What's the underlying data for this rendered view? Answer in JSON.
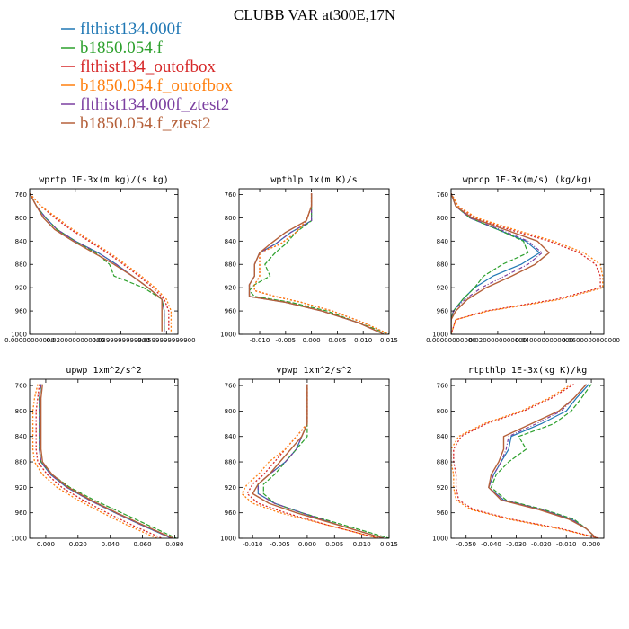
{
  "title": "CLUBB VAR at300E,17N",
  "legend": [
    {
      "name": "flthist134.000f",
      "color": "#1f77b4"
    },
    {
      "name": "b1850.054.f",
      "color": "#2ca02c"
    },
    {
      "name": "flthist134_outofbox",
      "color": "#d62728"
    },
    {
      "name": "b1850.054.f_outofbox",
      "color": "#ff7f0e"
    },
    {
      "name": "flthist134.000f_ztest2",
      "color": "#7b3fa0"
    },
    {
      "name": "b1850.054.f_ztest2",
      "color": "#b5603a"
    }
  ],
  "chart_data": [
    {
      "type": "line",
      "title": "wprtp  1E-3x(m kg)/(s kg)",
      "xlim": [
        0.0,
        0.065
      ],
      "ylim": [
        1000,
        750
      ],
      "x_ticks": [
        0.0,
        0.02,
        0.04,
        0.06
      ],
      "x_tick_labels": [
        "0.00000000000",
        "0.0200000000000",
        "0.0399999999900",
        "0.0599999999900"
      ],
      "y_ticks": [
        760,
        800,
        840,
        880,
        920,
        960,
        1000
      ],
      "y": [
        758,
        780,
        800,
        820,
        840,
        860,
        880,
        900,
        920,
        940,
        960,
        980,
        995
      ],
      "series": [
        {
          "name": "flthist134.000f",
          "values": [
            0.0,
            0.003,
            0.007,
            0.012,
            0.02,
            0.03,
            0.038,
            0.045,
            0.052,
            0.058,
            0.059,
            0.059,
            0.059
          ]
        },
        {
          "name": "b1850.054.f",
          "values": [
            0.0,
            0.003,
            0.007,
            0.012,
            0.02,
            0.029,
            0.035,
            0.037,
            0.05,
            0.058,
            0.059,
            0.059,
            0.059
          ]
        },
        {
          "name": "flthist134_outofbox",
          "values": [
            0.0,
            0.005,
            0.011,
            0.018,
            0.026,
            0.034,
            0.041,
            0.048,
            0.054,
            0.059,
            0.061,
            0.061,
            0.061
          ]
        },
        {
          "name": "b1850.054.f_outofbox",
          "values": [
            0.0,
            0.005,
            0.012,
            0.019,
            0.027,
            0.035,
            0.042,
            0.049,
            0.055,
            0.06,
            0.062,
            0.062,
            0.062
          ]
        },
        {
          "name": "flthist134.000f_ztest2",
          "values": [
            0.0,
            0.003,
            0.007,
            0.012,
            0.02,
            0.03,
            0.038,
            0.045,
            0.052,
            0.058,
            0.059,
            0.059,
            0.059
          ]
        },
        {
          "name": "b1850.054.f_ztest2",
          "values": [
            0.0,
            0.003,
            0.006,
            0.011,
            0.019,
            0.028,
            0.037,
            0.045,
            0.052,
            0.058,
            0.058,
            0.058,
            0.058
          ]
        }
      ]
    },
    {
      "type": "line",
      "title": "wpthlp  1x(m K)/s",
      "xlim": [
        -0.014,
        0.015
      ],
      "ylim": [
        1000,
        750
      ],
      "x_ticks": [
        -0.01,
        -0.005,
        0.0,
        0.005,
        0.01,
        0.015
      ],
      "x_tick_labels": [
        "-0.010",
        "-0.005",
        "0.000",
        "0.005",
        "0.010",
        "0.015"
      ],
      "y_ticks": [
        760,
        800,
        840,
        880,
        920,
        960,
        1000
      ],
      "y": [
        758,
        780,
        805,
        825,
        845,
        860,
        880,
        900,
        915,
        925,
        935,
        945,
        960,
        980,
        1000
      ],
      "series": [
        {
          "name": "flthist134.000f",
          "values": [
            0.0,
            0.0,
            0.0,
            -0.004,
            -0.007,
            -0.01,
            -0.011,
            -0.011,
            -0.012,
            -0.012,
            -0.012,
            -0.005,
            0.002,
            0.009,
            0.014
          ]
        },
        {
          "name": "b1850.054.f",
          "values": [
            0.0,
            0.0,
            0.0,
            -0.003,
            -0.005,
            -0.007,
            -0.009,
            -0.008,
            -0.011,
            -0.012,
            -0.011,
            -0.004,
            0.003,
            0.009,
            0.015
          ]
        },
        {
          "name": "flthist134_outofbox",
          "values": [
            0.0,
            0.0,
            -0.001,
            -0.003,
            -0.006,
            -0.01,
            -0.01,
            -0.01,
            -0.011,
            -0.011,
            -0.007,
            -0.002,
            0.004,
            0.01,
            0.015
          ]
        },
        {
          "name": "b1850.054.f_outofbox",
          "values": [
            0.0,
            0.0,
            -0.001,
            -0.003,
            -0.006,
            -0.01,
            -0.01,
            -0.01,
            -0.011,
            -0.011,
            -0.007,
            -0.002,
            0.004,
            0.01,
            0.015
          ]
        },
        {
          "name": "flthist134.000f_ztest2",
          "values": [
            0.0,
            0.0,
            0.0,
            -0.004,
            -0.007,
            -0.01,
            -0.011,
            -0.011,
            -0.012,
            -0.012,
            -0.012,
            -0.005,
            0.002,
            0.009,
            0.014
          ]
        },
        {
          "name": "b1850.054.f_ztest2",
          "values": [
            0.0,
            0.0,
            -0.001,
            -0.005,
            -0.008,
            -0.01,
            -0.011,
            -0.011,
            -0.012,
            -0.012,
            -0.012,
            -0.005,
            0.002,
            0.009,
            0.014
          ]
        }
      ]
    },
    {
      "type": "line",
      "title": "wprcp  1E-3x(m/s) (kg/kg)",
      "xlim": [
        0.0,
        0.0655
      ],
      "ylim": [
        1000,
        750
      ],
      "x_ticks": [
        0.0,
        0.02,
        0.04,
        0.06
      ],
      "x_tick_labels": [
        "0.00000000000",
        "0.0200000000000",
        "0.0400000000000",
        "0.0600000000000"
      ],
      "y_ticks": [
        760,
        800,
        840,
        880,
        920,
        960,
        1000
      ],
      "y": [
        758,
        780,
        800,
        820,
        840,
        860,
        880,
        900,
        920,
        940,
        960,
        975,
        1000
      ],
      "series": [
        {
          "name": "flthist134.000f",
          "values": [
            0.0,
            0.002,
            0.008,
            0.02,
            0.032,
            0.038,
            0.03,
            0.018,
            0.01,
            0.005,
            0.001,
            0.0,
            0.0
          ]
        },
        {
          "name": "b1850.054.f",
          "values": [
            0.0,
            0.002,
            0.008,
            0.02,
            0.031,
            0.033,
            0.022,
            0.014,
            0.01,
            0.005,
            0.001,
            0.0,
            0.0
          ]
        },
        {
          "name": "flthist134_outofbox",
          "values": [
            0.0,
            0.003,
            0.01,
            0.025,
            0.042,
            0.055,
            0.062,
            0.064,
            0.064,
            0.045,
            0.015,
            0.002,
            0.0
          ]
        },
        {
          "name": "b1850.054.f_outofbox",
          "values": [
            0.0,
            0.003,
            0.011,
            0.027,
            0.044,
            0.057,
            0.064,
            0.065,
            0.065,
            0.047,
            0.016,
            0.002,
            0.0
          ]
        },
        {
          "name": "flthist134.000f_ztest2",
          "values": [
            0.0,
            0.002,
            0.008,
            0.021,
            0.033,
            0.039,
            0.033,
            0.023,
            0.013,
            0.006,
            0.001,
            0.0,
            0.0
          ]
        },
        {
          "name": "b1850.054.f_ztest2",
          "values": [
            0.0,
            0.002,
            0.009,
            0.023,
            0.037,
            0.042,
            0.036,
            0.026,
            0.015,
            0.007,
            0.002,
            0.0,
            0.0
          ]
        }
      ]
    },
    {
      "type": "line",
      "title": "upwp  1xm^2/s^2",
      "xlim": [
        -0.01,
        0.082
      ],
      "ylim": [
        1000,
        750
      ],
      "x_ticks": [
        0.0,
        0.02,
        0.04,
        0.06,
        0.08
      ],
      "x_tick_labels": [
        "0.000",
        "0.020",
        "0.040",
        "0.060",
        "0.080"
      ],
      "y_ticks": [
        760,
        800,
        840,
        880,
        920,
        960,
        1000
      ],
      "y": [
        758,
        780,
        800,
        820,
        840,
        860,
        880,
        900,
        920,
        940,
        960,
        980,
        1000
      ],
      "series": [
        {
          "name": "flthist134.000f",
          "values": [
            -0.003,
            -0.004,
            -0.004,
            -0.004,
            -0.004,
            -0.004,
            -0.003,
            0.003,
            0.013,
            0.027,
            0.043,
            0.06,
            0.078
          ]
        },
        {
          "name": "b1850.054.f",
          "values": [
            -0.003,
            -0.004,
            -0.004,
            -0.004,
            -0.004,
            -0.004,
            -0.003,
            0.004,
            0.015,
            0.03,
            0.047,
            0.064,
            0.081
          ]
        },
        {
          "name": "flthist134_outofbox",
          "values": [
            -0.004,
            -0.005,
            -0.006,
            -0.006,
            -0.006,
            -0.006,
            -0.005,
            0.001,
            0.01,
            0.023,
            0.038,
            0.054,
            0.072
          ]
        },
        {
          "name": "b1850.054.f_outofbox",
          "values": [
            -0.005,
            -0.007,
            -0.008,
            -0.008,
            -0.008,
            -0.008,
            -0.007,
            -0.002,
            0.007,
            0.02,
            0.035,
            0.051,
            0.069
          ]
        },
        {
          "name": "flthist134.000f_ztest2",
          "values": [
            -0.003,
            -0.004,
            -0.004,
            -0.004,
            -0.004,
            -0.004,
            -0.003,
            0.003,
            0.013,
            0.027,
            0.043,
            0.06,
            0.078
          ]
        },
        {
          "name": "b1850.054.f_ztest2",
          "values": [
            -0.002,
            -0.003,
            -0.003,
            -0.003,
            -0.003,
            -0.003,
            -0.002,
            0.004,
            0.014,
            0.028,
            0.044,
            0.061,
            0.079
          ]
        }
      ]
    },
    {
      "type": "line",
      "title": "vpwp  1xm^2/s^2",
      "xlim": [
        -0.0125,
        0.015
      ],
      "ylim": [
        1000,
        750
      ],
      "x_ticks": [
        -0.01,
        -0.005,
        0.0,
        0.005,
        0.01,
        0.015
      ],
      "x_tick_labels": [
        "-0.010",
        "-0.005",
        "0.000",
        "0.005",
        "0.010",
        "0.015"
      ],
      "y_ticks": [
        760,
        800,
        840,
        880,
        920,
        960,
        1000
      ],
      "y": [
        758,
        780,
        800,
        820,
        840,
        860,
        880,
        900,
        915,
        930,
        945,
        960,
        980,
        1000
      ],
      "series": [
        {
          "name": "flthist134.000f",
          "values": [
            0.0,
            0.0,
            0.0,
            0.0,
            -0.001,
            -0.002,
            -0.004,
            -0.007,
            -0.009,
            -0.009,
            -0.006,
            -0.001,
            0.006,
            0.014
          ]
        },
        {
          "name": "b1850.054.f",
          "values": [
            0.0,
            0.0,
            0.0,
            0.0,
            0.0,
            -0.002,
            -0.004,
            -0.006,
            -0.008,
            -0.008,
            -0.006,
            -0.001,
            0.007,
            0.015
          ]
        },
        {
          "name": "flthist134_outofbox",
          "values": [
            0.0,
            0.0,
            0.0,
            0.0,
            -0.002,
            -0.004,
            -0.006,
            -0.008,
            -0.01,
            -0.011,
            -0.009,
            -0.004,
            0.004,
            0.013
          ]
        },
        {
          "name": "b1850.054.f_outofbox",
          "values": [
            0.0,
            0.0,
            0.0,
            0.0,
            -0.002,
            -0.004,
            -0.007,
            -0.009,
            -0.011,
            -0.012,
            -0.01,
            -0.005,
            0.004,
            0.013
          ]
        },
        {
          "name": "flthist134.000f_ztest2",
          "values": [
            0.0,
            0.0,
            0.0,
            0.0,
            -0.001,
            -0.002,
            -0.004,
            -0.007,
            -0.009,
            -0.009,
            -0.006,
            -0.001,
            0.006,
            0.014
          ]
        },
        {
          "name": "b1850.054.f_ztest2",
          "values": [
            0.0,
            0.0,
            0.0,
            0.0,
            -0.001,
            -0.003,
            -0.005,
            -0.007,
            -0.009,
            -0.01,
            -0.007,
            -0.002,
            0.006,
            0.014
          ]
        }
      ]
    },
    {
      "type": "line",
      "title": "rtpthlp  1E-3x(kg K)/kg",
      "xlim": [
        -0.056,
        0.005
      ],
      "ylim": [
        1000,
        750
      ],
      "x_ticks": [
        -0.05,
        -0.04,
        -0.03,
        -0.02,
        -0.01,
        0.0
      ],
      "x_tick_labels": [
        "-0.050",
        "-0.040",
        "-0.030",
        "-0.020",
        "-0.010",
        "0.000"
      ],
      "y_ticks": [
        760,
        800,
        840,
        880,
        920,
        960,
        1000
      ],
      "y": [
        758,
        780,
        800,
        820,
        840,
        860,
        880,
        900,
        920,
        940,
        955,
        970,
        985,
        1000
      ],
      "series": [
        {
          "name": "flthist134.000f",
          "values": [
            -0.001,
            -0.006,
            -0.01,
            -0.02,
            -0.032,
            -0.033,
            -0.036,
            -0.039,
            -0.041,
            -0.035,
            -0.02,
            -0.008,
            -0.002,
            0.002
          ]
        },
        {
          "name": "b1850.054.f",
          "values": [
            0.0,
            -0.004,
            -0.008,
            -0.015,
            -0.029,
            -0.026,
            -0.033,
            -0.038,
            -0.04,
            -0.034,
            -0.019,
            -0.007,
            -0.002,
            0.002
          ]
        },
        {
          "name": "flthist134_outofbox",
          "values": [
            -0.007,
            -0.016,
            -0.027,
            -0.042,
            -0.052,
            -0.055,
            -0.055,
            -0.054,
            -0.054,
            -0.053,
            -0.047,
            -0.032,
            -0.012,
            0.003
          ]
        },
        {
          "name": "b1850.054.f_outofbox",
          "values": [
            -0.008,
            -0.017,
            -0.028,
            -0.043,
            -0.053,
            -0.056,
            -0.056,
            -0.055,
            -0.055,
            -0.054,
            -0.048,
            -0.033,
            -0.013,
            0.003
          ]
        },
        {
          "name": "flthist134.000f_ztest2",
          "values": [
            -0.002,
            -0.007,
            -0.012,
            -0.022,
            -0.033,
            -0.034,
            -0.036,
            -0.039,
            -0.041,
            -0.035,
            -0.02,
            -0.008,
            -0.002,
            0.002
          ]
        },
        {
          "name": "b1850.054.f_ztest2",
          "values": [
            -0.002,
            -0.007,
            -0.013,
            -0.024,
            -0.035,
            -0.035,
            -0.037,
            -0.04,
            -0.041,
            -0.036,
            -0.021,
            -0.009,
            -0.002,
            0.002
          ]
        }
      ]
    }
  ]
}
